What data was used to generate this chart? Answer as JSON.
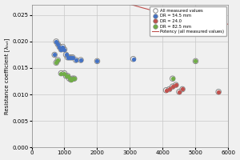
{
  "title": "",
  "xlabel": "",
  "ylabel": "Resistance coefficient [λₜₒₜ]",
  "xlim": [
    0,
    6000
  ],
  "ylim": [
    0.0,
    0.027
  ],
  "yticks": [
    0.0,
    0.005,
    0.01,
    0.015,
    0.02,
    0.025
  ],
  "xticks": [
    0,
    1000,
    2000,
    3000,
    4000,
    5000,
    6000
  ],
  "legend_labels": [
    "All measured values",
    "DR = 54.5 mm",
    "DR = 24.0",
    "DR = 82.5 mm",
    "Potency (all measured values)"
  ],
  "blue_points": [
    [
      700,
      0.0175
    ],
    [
      750,
      0.02
    ],
    [
      800,
      0.0195
    ],
    [
      850,
      0.019
    ],
    [
      900,
      0.0185
    ],
    [
      950,
      0.019
    ],
    [
      1000,
      0.0185
    ],
    [
      1050,
      0.0175
    ],
    [
      1100,
      0.017
    ],
    [
      1150,
      0.017
    ],
    [
      1200,
      0.017
    ],
    [
      1250,
      0.017
    ],
    [
      1350,
      0.0165
    ],
    [
      1500,
      0.0165
    ],
    [
      2000,
      0.0163
    ],
    [
      3100,
      0.0167
    ]
  ],
  "red_points": [
    [
      4100,
      0.0108
    ],
    [
      4200,
      0.011
    ],
    [
      4300,
      0.0115
    ],
    [
      4400,
      0.0118
    ],
    [
      4500,
      0.0105
    ],
    [
      4600,
      0.011
    ],
    [
      5700,
      0.0105
    ]
  ],
  "green_points": [
    [
      750,
      0.016
    ],
    [
      800,
      0.0165
    ],
    [
      900,
      0.014
    ],
    [
      1000,
      0.014
    ],
    [
      1050,
      0.0135
    ],
    [
      1100,
      0.0135
    ],
    [
      1150,
      0.013
    ],
    [
      1200,
      0.0128
    ],
    [
      1250,
      0.013
    ],
    [
      1300,
      0.013
    ],
    [
      4300,
      0.013
    ],
    [
      5000,
      0.0163
    ]
  ],
  "power_curve_a": 0.155,
  "power_curve_b": -0.218,
  "bg_color": "#f0f0f0",
  "grid_color": "#c8c8c8",
  "blue_color": "#4472c4",
  "red_color": "#c0504d",
  "green_color": "#70ad47",
  "circle_color": "#888888",
  "curve_color": "#c0504d"
}
